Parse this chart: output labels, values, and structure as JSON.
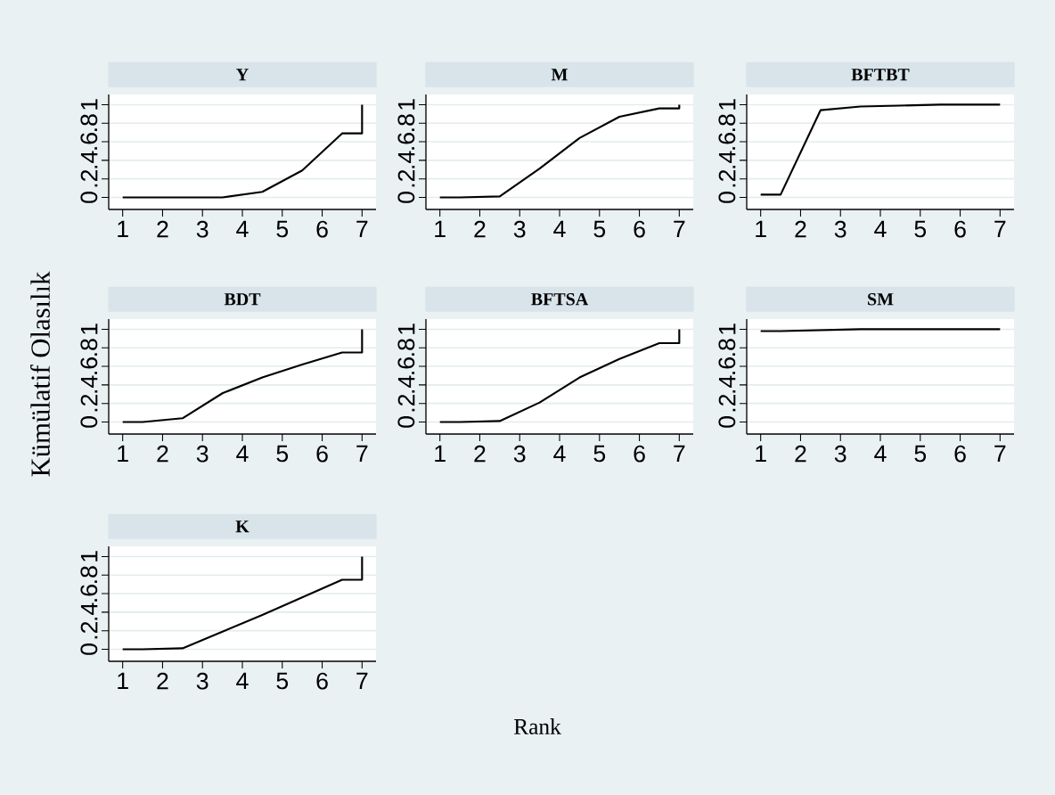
{
  "chart_data": [
    {
      "type": "line",
      "title": "Y",
      "x": [
        1,
        1.5,
        2.5,
        3.5,
        4.5,
        5.5,
        6.5,
        7,
        7
      ],
      "values": [
        0,
        0,
        0,
        0,
        0.06,
        0.29,
        0.69,
        0.69,
        1
      ],
      "color": "#000000",
      "xlim": [
        0.65,
        7.35
      ],
      "ylim": [
        -0.13,
        1.11
      ],
      "xticks": [
        1,
        2,
        3,
        4,
        5,
        6,
        7
      ],
      "yticks": [
        0,
        {
          "value": 0.2,
          "label": ".2"
        },
        {
          "value": 0.4,
          "label": ".4"
        },
        {
          "value": 0.6,
          "label": ".6"
        },
        {
          "value": 0.8,
          "label": ".8"
        },
        1
      ],
      "grid": "y"
    },
    {
      "type": "line",
      "title": "M",
      "x": [
        1,
        1.5,
        2.5,
        3.5,
        4.5,
        5.5,
        6.5,
        7,
        7
      ],
      "values": [
        0,
        0,
        0.01,
        0.31,
        0.64,
        0.87,
        0.96,
        0.96,
        1
      ],
      "color": "#000000",
      "xlim": [
        0.65,
        7.35
      ],
      "ylim": [
        -0.13,
        1.11
      ],
      "xticks": [
        1,
        2,
        3,
        4,
        5,
        6,
        7
      ],
      "yticks": [
        0,
        {
          "value": 0.2,
          "label": ".2"
        },
        {
          "value": 0.4,
          "label": ".4"
        },
        {
          "value": 0.6,
          "label": ".6"
        },
        {
          "value": 0.8,
          "label": ".8"
        },
        1
      ],
      "grid": "y"
    },
    {
      "type": "line",
      "title": "BFTBT",
      "x": [
        1,
        1.5,
        2.5,
        3.5,
        4.5,
        5.5,
        6.5,
        7,
        7
      ],
      "values": [
        0.03,
        0.03,
        0.94,
        0.98,
        0.99,
        1,
        1,
        1,
        1
      ],
      "color": "#000000",
      "xlim": [
        0.65,
        7.35
      ],
      "ylim": [
        -0.13,
        1.11
      ],
      "xticks": [
        1,
        2,
        3,
        4,
        5,
        6,
        7
      ],
      "yticks": [
        0,
        {
          "value": 0.2,
          "label": ".2"
        },
        {
          "value": 0.4,
          "label": ".4"
        },
        {
          "value": 0.6,
          "label": ".6"
        },
        {
          "value": 0.8,
          "label": ".8"
        },
        1
      ],
      "grid": "y"
    },
    {
      "type": "line",
      "title": "BDT",
      "ylabel": "Kümülatif Olasılık",
      "x": [
        1,
        1.5,
        2.5,
        3.5,
        4.5,
        5.5,
        6.5,
        7,
        7
      ],
      "values": [
        0,
        0,
        0.04,
        0.31,
        0.48,
        0.62,
        0.75,
        0.75,
        1
      ],
      "color": "#000000",
      "xlim": [
        0.65,
        7.35
      ],
      "ylim": [
        -0.13,
        1.11
      ],
      "xticks": [
        1,
        2,
        3,
        4,
        5,
        6,
        7
      ],
      "yticks": [
        0,
        {
          "value": 0.2,
          "label": ".2"
        },
        {
          "value": 0.4,
          "label": ".4"
        },
        {
          "value": 0.6,
          "label": ".6"
        },
        {
          "value": 0.8,
          "label": ".8"
        },
        1
      ],
      "grid": "y"
    },
    {
      "type": "line",
      "title": "BFTSA",
      "xlabel": "Rank",
      "x": [
        1,
        1.5,
        2.5,
        3.5,
        4.5,
        5.5,
        6.5,
        7,
        7
      ],
      "values": [
        0,
        0,
        0.01,
        0.21,
        0.48,
        0.68,
        0.85,
        0.85,
        1
      ],
      "color": "#000000",
      "xlim": [
        0.65,
        7.35
      ],
      "ylim": [
        -0.13,
        1.11
      ],
      "xticks": [
        1,
        2,
        3,
        4,
        5,
        6,
        7
      ],
      "yticks": [
        0,
        {
          "value": 0.2,
          "label": ".2"
        },
        {
          "value": 0.4,
          "label": ".4"
        },
        {
          "value": 0.6,
          "label": ".6"
        },
        {
          "value": 0.8,
          "label": ".8"
        },
        1
      ],
      "grid": "y"
    },
    {
      "type": "line",
      "title": "SM",
      "x": [
        1,
        1.5,
        2.5,
        3.5,
        4.5,
        5.5,
        6.5,
        7,
        7
      ],
      "values": [
        0.98,
        0.98,
        0.99,
        1,
        1,
        1,
        1,
        1,
        1
      ],
      "color": "#000000",
      "xlim": [
        0.65,
        7.35
      ],
      "ylim": [
        -0.13,
        1.11
      ],
      "xticks": [
        1,
        2,
        3,
        4,
        5,
        6,
        7
      ],
      "yticks": [
        0,
        {
          "value": 0.2,
          "label": ".2"
        },
        {
          "value": 0.4,
          "label": ".4"
        },
        {
          "value": 0.6,
          "label": ".6"
        },
        {
          "value": 0.8,
          "label": ".8"
        },
        1
      ],
      "grid": "y"
    },
    {
      "type": "line",
      "title": "K",
      "x": [
        1,
        1.5,
        2.5,
        3.5,
        4.5,
        5.5,
        6.5,
        7,
        7
      ],
      "values": [
        0,
        0,
        0.01,
        0.19,
        0.37,
        0.56,
        0.75,
        0.75,
        1
      ],
      "color": "#000000",
      "xlim": [
        0.65,
        7.35
      ],
      "ylim": [
        -0.13,
        1.11
      ],
      "xticks": [
        1,
        2,
        3,
        4,
        5,
        6,
        7
      ],
      "yticks": [
        0,
        {
          "value": 0.2,
          "label": ".2"
        },
        {
          "value": 0.4,
          "label": ".4"
        },
        {
          "value": 0.6,
          "label": ".6"
        },
        {
          "value": 0.8,
          "label": ".8"
        },
        1
      ],
      "grid": "y"
    }
  ]
}
